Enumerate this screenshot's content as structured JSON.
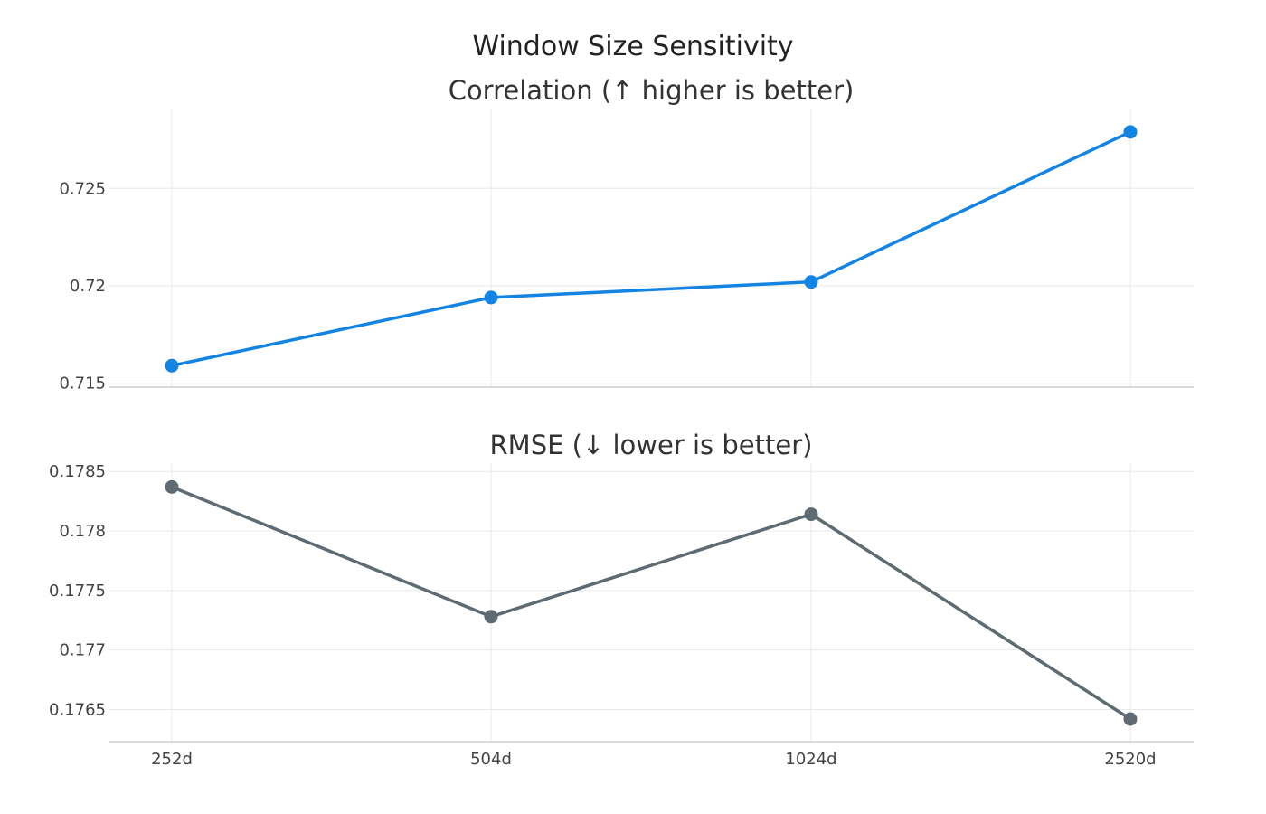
{
  "chart_data": {
    "type": "line",
    "title": "Window Size Sensitivity",
    "categories": [
      "252d",
      "504d",
      "1024d",
      "2520d"
    ],
    "panels": [
      {
        "title": "Correlation (↑ higher is better)",
        "series": [
          {
            "name": "",
            "color": "#1484e3",
            "values": [
              0.7159,
              0.7194,
              0.7202,
              0.7279
            ]
          }
        ],
        "ylim": [
          0.7148,
          0.7291
        ],
        "yticks": [
          0.715,
          0.72,
          0.725
        ],
        "ytick_labels": [
          "0.715",
          "0.72",
          "0.725"
        ],
        "grid": true
      },
      {
        "title": "RMSE (↓ lower is better)",
        "series": [
          {
            "name": "",
            "color": "#5f6b72",
            "values": [
              0.17837,
              0.17728,
              0.17814,
              0.17642
            ]
          }
        ],
        "ylim": [
          0.17623,
          0.17857
        ],
        "yticks": [
          0.1765,
          0.177,
          0.1775,
          0.178,
          0.1785
        ],
        "ytick_labels": [
          "0.1765",
          "0.177",
          "0.1775",
          "0.178",
          "0.1785"
        ],
        "grid": true
      }
    ],
    "legend": "none"
  }
}
